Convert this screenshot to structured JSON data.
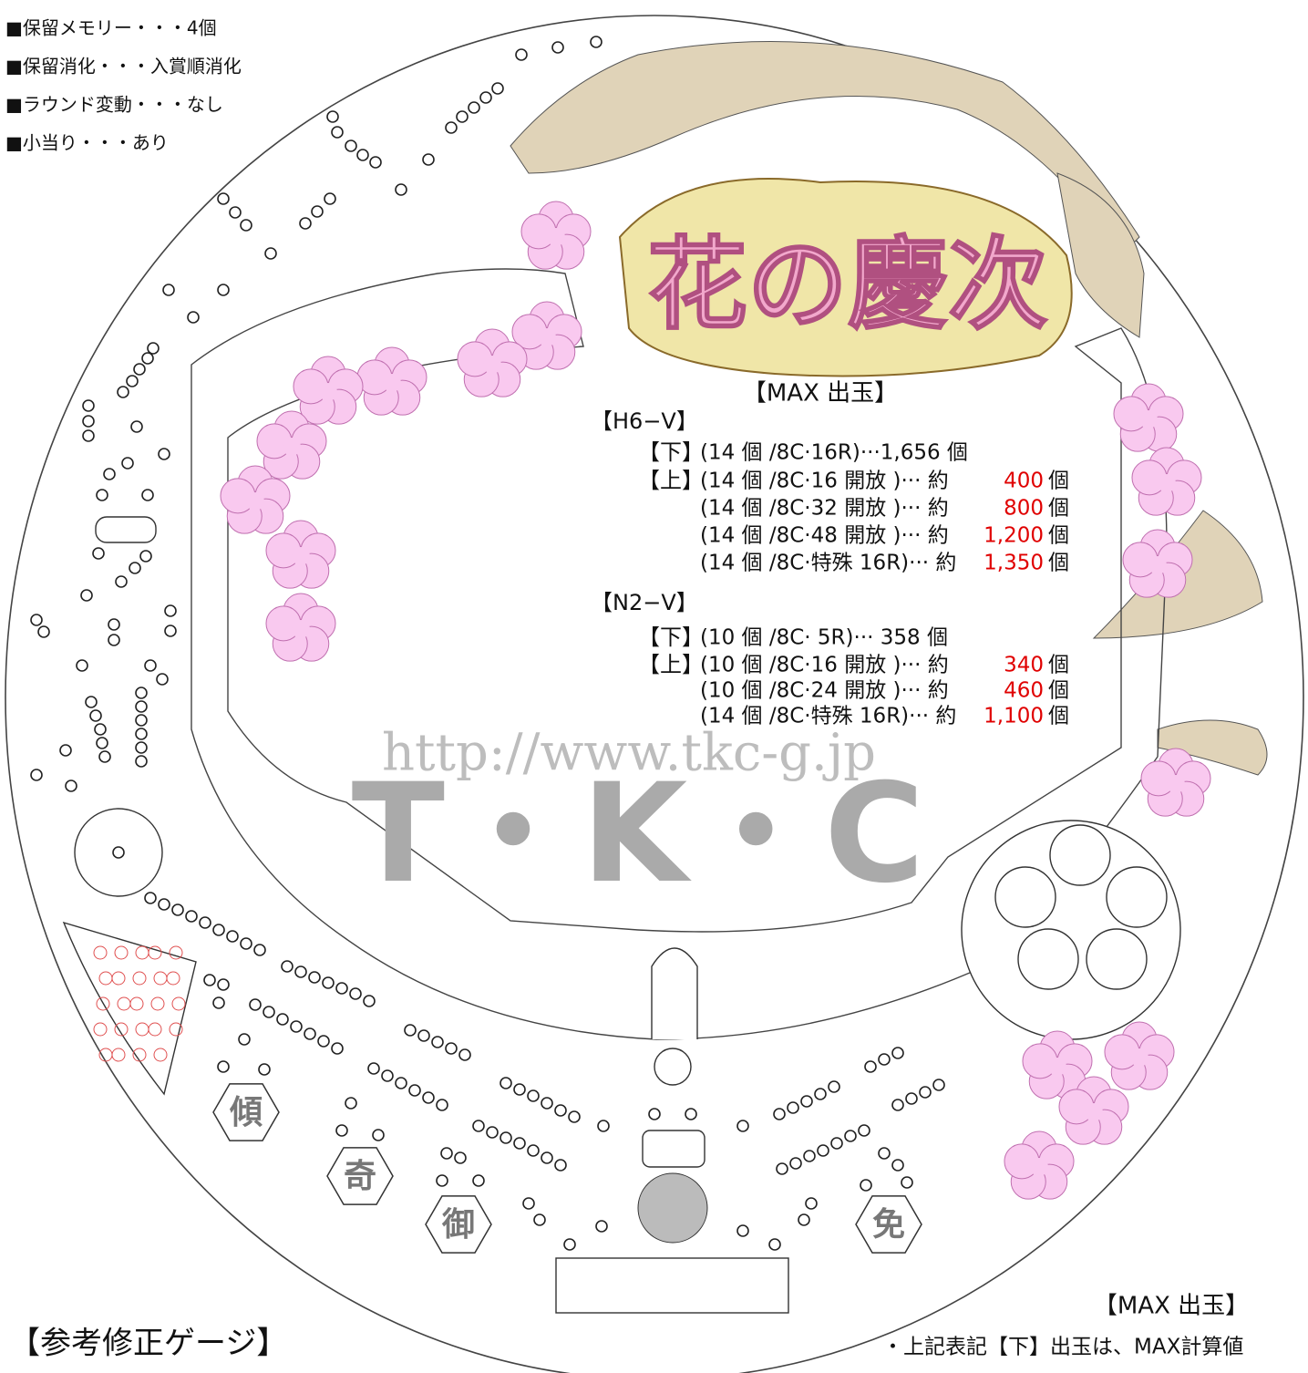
{
  "info": [
    "■保留メモリー・・・4個",
    "■保留消化・・・入賞順消化",
    "■ラウンド変動・・・なし",
    "■小当り・・・あり"
  ],
  "logo": "花の慶次",
  "panel": {
    "title": "【MAX 出玉】",
    "groups": [
      {
        "name": "【H6−V】",
        "rows": [
          {
            "label": "【下】",
            "text": "(14 個 /8C·16R)···1,656 個"
          },
          {
            "label": "【上】",
            "text": "(14 個 /8C·16 開放 )··· 約",
            "value": "400",
            "unit": "個"
          },
          {
            "text": "(14 個 /8C·32 開放 )··· 約",
            "value": "800",
            "unit": "個"
          },
          {
            "text": "(14 個 /8C·48 開放 )··· 約",
            "value": "1,200",
            "unit": "個"
          },
          {
            "text": "(14 個 /8C·特殊 16R)··· 約",
            "value": "1,350",
            "unit": "個"
          }
        ]
      },
      {
        "name": "【N2−V】",
        "rows": [
          {
            "label": "【下】",
            "text": "(10 個 /8C· 5R)··· 358 個"
          },
          {
            "label": "【上】",
            "text": "(10 個 /8C·16 開放 )··· 約",
            "value": "340",
            "unit": "個"
          },
          {
            "text": "(10 個 /8C·24 開放 )··· 約",
            "value": "460",
            "unit": "個"
          },
          {
            "text": "(14 個 /8C·特殊 16R)··· 約",
            "value": "1,100",
            "unit": "個"
          }
        ]
      }
    ]
  },
  "watermark": {
    "url": "http://www.tkc-g.jp",
    "brand": "T・K・C"
  },
  "badges": [
    "傾",
    "奇",
    "御",
    "免"
  ],
  "footer": {
    "title": "【参考修正ゲージ】",
    "note_title": "【MAX 出玉】",
    "notes": [
      "・上記表記【下】出玉は、MAX計算値"
    ]
  }
}
